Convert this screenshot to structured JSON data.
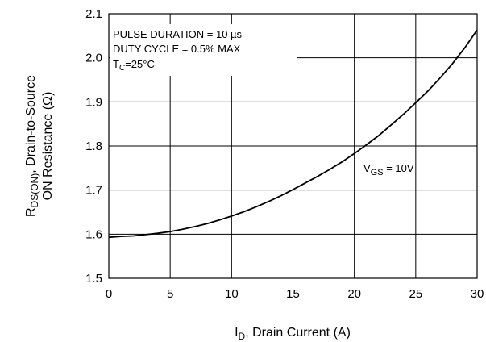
{
  "chart_data": {
    "type": "line",
    "x": [
      0,
      1,
      2,
      3,
      4,
      5,
      6,
      7,
      8,
      9,
      10,
      11,
      12,
      13,
      14,
      15,
      16,
      17,
      18,
      19,
      20,
      21,
      22,
      23,
      24,
      25,
      26,
      27,
      28,
      29,
      30
    ],
    "series": [
      {
        "name": "VGS = 10V",
        "name_main": "V",
        "name_sub": "GS",
        "name_rest": " = 10V",
        "values": [
          1.593,
          1.595,
          1.596,
          1.599,
          1.602,
          1.606,
          1.611,
          1.617,
          1.624,
          1.632,
          1.641,
          1.651,
          1.662,
          1.674,
          1.687,
          1.701,
          1.716,
          1.731,
          1.747,
          1.764,
          1.783,
          1.803,
          1.824,
          1.848,
          1.872,
          1.898,
          1.925,
          1.955,
          1.987,
          2.023,
          2.063
        ]
      }
    ],
    "xlim": [
      0,
      30
    ],
    "ylim": [
      1.5,
      2.1
    ],
    "x_ticks": [
      "0",
      "5",
      "10",
      "15",
      "20",
      "25",
      "30"
    ],
    "y_ticks": [
      "1.5",
      "1.6",
      "1.7",
      "1.8",
      "1.9",
      "2.0",
      "2.1"
    ],
    "grid": true,
    "xlabel": "ID, Drain Current (A)",
    "xlabel_main": "I",
    "xlabel_sub": "D",
    "xlabel_rest": ", Drain Current (A)",
    "ylabel": "RDS(ON), Drain-to-Source ON Resistance (Ω)",
    "ylabel_line1_main": "R",
    "ylabel_line1_sub": "DS(ON)",
    "ylabel_line1_rest": ", Drain-to-Source",
    "ylabel_line2": "ON Resistance (Ω)",
    "annotations": {
      "pulse_duration": "PULSE DURATION = 10 µs",
      "duty_cycle": "DUTY CYCLE = 0.5% MAX",
      "tc_main": "T",
      "tc_sub": "C",
      "tc_rest": "=25°C"
    }
  }
}
